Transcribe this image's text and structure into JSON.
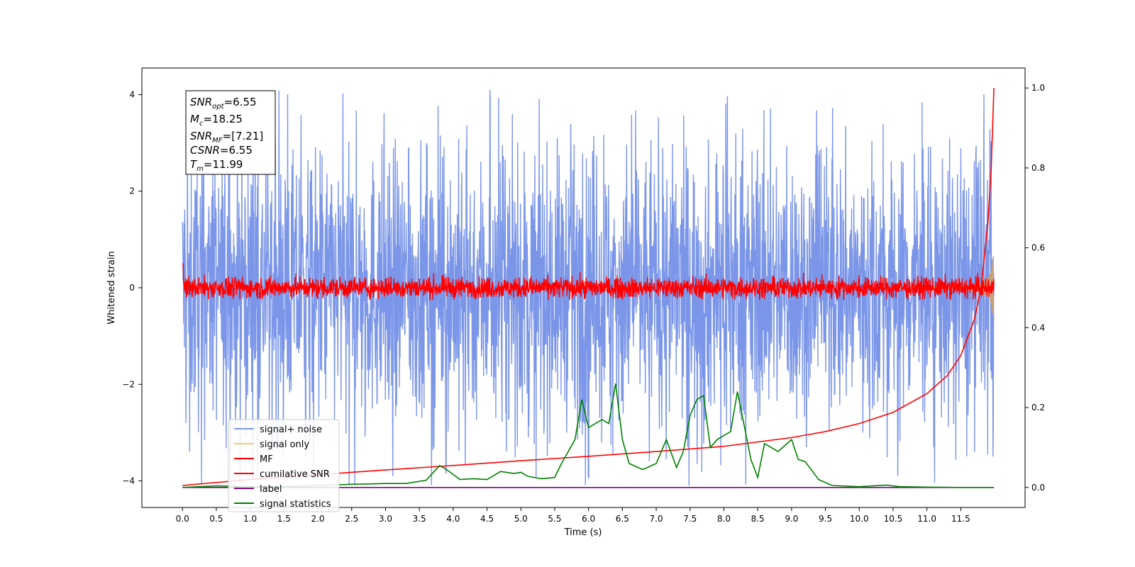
{
  "chart_data": {
    "type": "line",
    "xlabel": "Time (s)",
    "ylabel": "Whitened strain",
    "ylabel_right": "",
    "xlim": [
      -0.6,
      12.45
    ],
    "ylim": [
      -4.55,
      4.55
    ],
    "ylim_right": [
      -0.05,
      1.05
    ],
    "x_ticks": [
      "0.0",
      "0.5",
      "1.0",
      "1.5",
      "2.0",
      "2.5",
      "3.0",
      "3.5",
      "4.0",
      "4.5",
      "5.0",
      "5.5",
      "6.0",
      "6.5",
      "7.0",
      "7.5",
      "8.0",
      "8.5",
      "9.0",
      "9.5",
      "10.0",
      "10.5",
      "11.0",
      "11.5"
    ],
    "y_ticks": [
      "4",
      "2",
      "0",
      "−2",
      "−4"
    ],
    "y_ticks_right": [
      "1.0",
      "0.8",
      "0.6",
      "0.4",
      "0.2",
      "0.0"
    ],
    "info_box": {
      "snr_opt": {
        "name": "SNR",
        "sub": "opt",
        "value": "=6.55"
      },
      "mc": {
        "name": "M",
        "sub": "c",
        "value": "=18.25"
      },
      "snr_mf": {
        "name": "SNR",
        "sub": "MF",
        "value": "=[7.21]"
      },
      "csnr": {
        "name": "CSNR",
        "sub": "",
        "value": "=6.55"
      },
      "tm": {
        "name": "T",
        "sub": "m",
        "value": "=11.99"
      }
    },
    "legend": {
      "position": "lower-left",
      "entries": [
        {
          "label": "signal+ noise",
          "color": "#7b96e8"
        },
        {
          "label": "signal only",
          "color": "#f5c86e"
        },
        {
          "label": "MF",
          "color": "#ff0000"
        },
        {
          "label": "cumilative SNR",
          "color": "#ff0000"
        },
        {
          "label": "label",
          "color": "#800080"
        },
        {
          "label": "signal statistics",
          "color": "#008000"
        }
      ]
    },
    "series": [
      {
        "name": "signal+ noise",
        "axis": "left",
        "color": "#7b96e8",
        "note_values": "noise band envelope",
        "envelope_max": 4.1,
        "typical_amplitude": 2.2
      },
      {
        "name": "signal only",
        "axis": "left",
        "color": "#c8a078",
        "chirp": {
          "t_end": 11.99,
          "amp_end": 0.95
        }
      },
      {
        "name": "MF",
        "axis": "left",
        "color": "#ff0000",
        "typical_amplitude": 0.2,
        "peak_start": 1.0
      },
      {
        "name": "cumilative SNR",
        "axis": "right",
        "color": "#ff0000",
        "x": [
          0.0,
          1.0,
          2.0,
          3.0,
          4.0,
          5.0,
          6.0,
          7.0,
          8.0,
          9.0,
          9.5,
          10.0,
          10.5,
          11.0,
          11.3,
          11.5,
          11.7,
          11.8,
          11.9,
          11.95,
          11.99
        ],
        "y": [
          0.005,
          0.02,
          0.032,
          0.044,
          0.055,
          0.067,
          0.078,
          0.09,
          0.103,
          0.125,
          0.14,
          0.16,
          0.188,
          0.235,
          0.28,
          0.33,
          0.42,
          0.5,
          0.66,
          0.8,
          1.0
        ]
      },
      {
        "name": "label",
        "axis": "right",
        "color": "#800080",
        "x": [
          0.0,
          11.99
        ],
        "y": [
          0.0,
          0.0
        ]
      },
      {
        "name": "signal statistics",
        "axis": "right",
        "color": "#008000",
        "x": [
          0.0,
          0.5,
          1.0,
          1.5,
          2.0,
          2.5,
          3.0,
          3.3,
          3.6,
          3.8,
          3.9,
          4.1,
          4.3,
          4.5,
          4.7,
          4.9,
          5.0,
          5.1,
          5.3,
          5.5,
          5.6,
          5.8,
          5.9,
          6.0,
          6.2,
          6.3,
          6.4,
          6.5,
          6.6,
          6.8,
          7.0,
          7.15,
          7.3,
          7.4,
          7.5,
          7.6,
          7.7,
          7.8,
          7.9,
          8.1,
          8.2,
          8.4,
          8.5,
          8.6,
          8.8,
          9.0,
          9.1,
          9.2,
          9.4,
          9.6,
          10.0,
          10.4,
          10.6,
          11.0,
          11.5,
          11.99
        ],
        "y": [
          0.0,
          0.004,
          0.002,
          0.002,
          0.005,
          0.008,
          0.01,
          0.01,
          0.018,
          0.055,
          0.045,
          0.02,
          0.022,
          0.02,
          0.04,
          0.035,
          0.038,
          0.028,
          0.022,
          0.025,
          0.06,
          0.12,
          0.22,
          0.15,
          0.17,
          0.16,
          0.26,
          0.12,
          0.06,
          0.045,
          0.06,
          0.12,
          0.05,
          0.09,
          0.18,
          0.22,
          0.23,
          0.1,
          0.12,
          0.14,
          0.24,
          0.07,
          0.025,
          0.11,
          0.09,
          0.12,
          0.07,
          0.065,
          0.02,
          0.005,
          0.002,
          0.006,
          0.002,
          0.001,
          0.0,
          0.0
        ]
      }
    ]
  }
}
